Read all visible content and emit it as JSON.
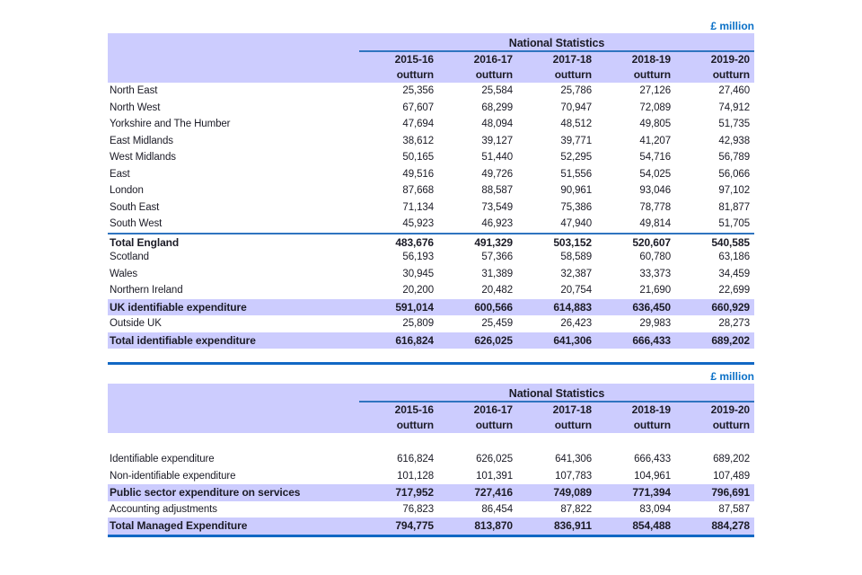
{
  "colors": {
    "band_background": "#ccccfe",
    "row_highlight": "#ccccfe",
    "rule_blue": "#2f74c0",
    "thick_rule_blue": "#1168c4",
    "unit_text_blue": "#0a70c7",
    "text": "#1b1b26"
  },
  "tables": [
    {
      "unit": "£ million",
      "group_header": "National Statistics",
      "columns": [
        {
          "year": "2015-16",
          "sub": "outturn"
        },
        {
          "year": "2016-17",
          "sub": "outturn"
        },
        {
          "year": "2017-18",
          "sub": "outturn"
        },
        {
          "year": "2018-19",
          "sub": "outturn"
        },
        {
          "year": "2019-20",
          "sub": "outturn"
        }
      ],
      "rows": [
        {
          "label": "North East",
          "values": [
            "25,356",
            "25,584",
            "25,786",
            "27,126",
            "27,460"
          ]
        },
        {
          "label": "North West",
          "values": [
            "67,607",
            "68,299",
            "70,947",
            "72,089",
            "74,912"
          ]
        },
        {
          "label": "Yorkshire and The Humber",
          "values": [
            "47,694",
            "48,094",
            "48,512",
            "49,805",
            "51,735"
          ]
        },
        {
          "label": "East Midlands",
          "values": [
            "38,612",
            "39,127",
            "39,771",
            "41,207",
            "42,938"
          ]
        },
        {
          "label": "West Midlands",
          "values": [
            "50,165",
            "51,440",
            "52,295",
            "54,716",
            "56,789"
          ]
        },
        {
          "label": "East",
          "values": [
            "49,516",
            "49,726",
            "51,556",
            "54,025",
            "56,066"
          ]
        },
        {
          "label": "London",
          "values": [
            "87,668",
            "88,587",
            "90,961",
            "93,046",
            "97,102"
          ]
        },
        {
          "label": "South East",
          "values": [
            "71,134",
            "73,549",
            "75,386",
            "78,778",
            "81,877"
          ]
        },
        {
          "label": "South West",
          "values": [
            "45,923",
            "46,923",
            "47,940",
            "49,814",
            "51,705"
          ]
        },
        {
          "label": "Total England",
          "bold": true,
          "topline": true,
          "values": [
            "483,676",
            "491,329",
            "503,152",
            "520,607",
            "540,585"
          ]
        },
        {
          "label": "Scotland",
          "values": [
            "56,193",
            "57,366",
            "58,589",
            "60,780",
            "63,186"
          ]
        },
        {
          "label": "Wales",
          "values": [
            "30,945",
            "31,389",
            "32,387",
            "33,373",
            "34,459"
          ]
        },
        {
          "label": "Northern Ireland",
          "values": [
            "20,200",
            "20,482",
            "20,754",
            "21,690",
            "22,699"
          ]
        },
        {
          "label": "UK identifiable expenditure",
          "bold": true,
          "highlight": true,
          "values": [
            "591,014",
            "600,566",
            "614,883",
            "636,450",
            "660,929"
          ]
        },
        {
          "label": "Outside UK",
          "values": [
            "25,809",
            "25,459",
            "26,423",
            "29,983",
            "28,273"
          ]
        },
        {
          "label": "Total identifiable expenditure",
          "bold": true,
          "highlight": true,
          "values": [
            "616,824",
            "626,025",
            "641,306",
            "666,433",
            "689,202"
          ]
        }
      ]
    },
    {
      "unit": "£ million",
      "group_header": "National Statistics",
      "columns": [
        {
          "year": "2015-16",
          "sub": "outturn"
        },
        {
          "year": "2016-17",
          "sub": "outturn"
        },
        {
          "year": "2017-18",
          "sub": "outturn"
        },
        {
          "year": "2018-19",
          "sub": "outturn"
        },
        {
          "year": "2019-20",
          "sub": "outturn"
        }
      ],
      "rows": [
        {
          "spacer": true
        },
        {
          "label": "Identifiable expenditure",
          "values": [
            "616,824",
            "626,025",
            "641,306",
            "666,433",
            "689,202"
          ]
        },
        {
          "label": "Non-identifiable expenditure",
          "values": [
            "101,128",
            "101,391",
            "107,783",
            "104,961",
            "107,489"
          ]
        },
        {
          "label": "Public sector expenditure on services",
          "bold": true,
          "highlight": true,
          "values": [
            "717,952",
            "727,416",
            "749,089",
            "771,394",
            "796,691"
          ]
        },
        {
          "label": "Accounting adjustments",
          "values": [
            "76,823",
            "86,454",
            "87,822",
            "83,094",
            "87,587"
          ]
        },
        {
          "label": "Total Managed Expenditure",
          "bold": true,
          "highlight": true,
          "values": [
            "794,775",
            "813,870",
            "836,911",
            "854,488",
            "884,278"
          ]
        }
      ]
    }
  ]
}
